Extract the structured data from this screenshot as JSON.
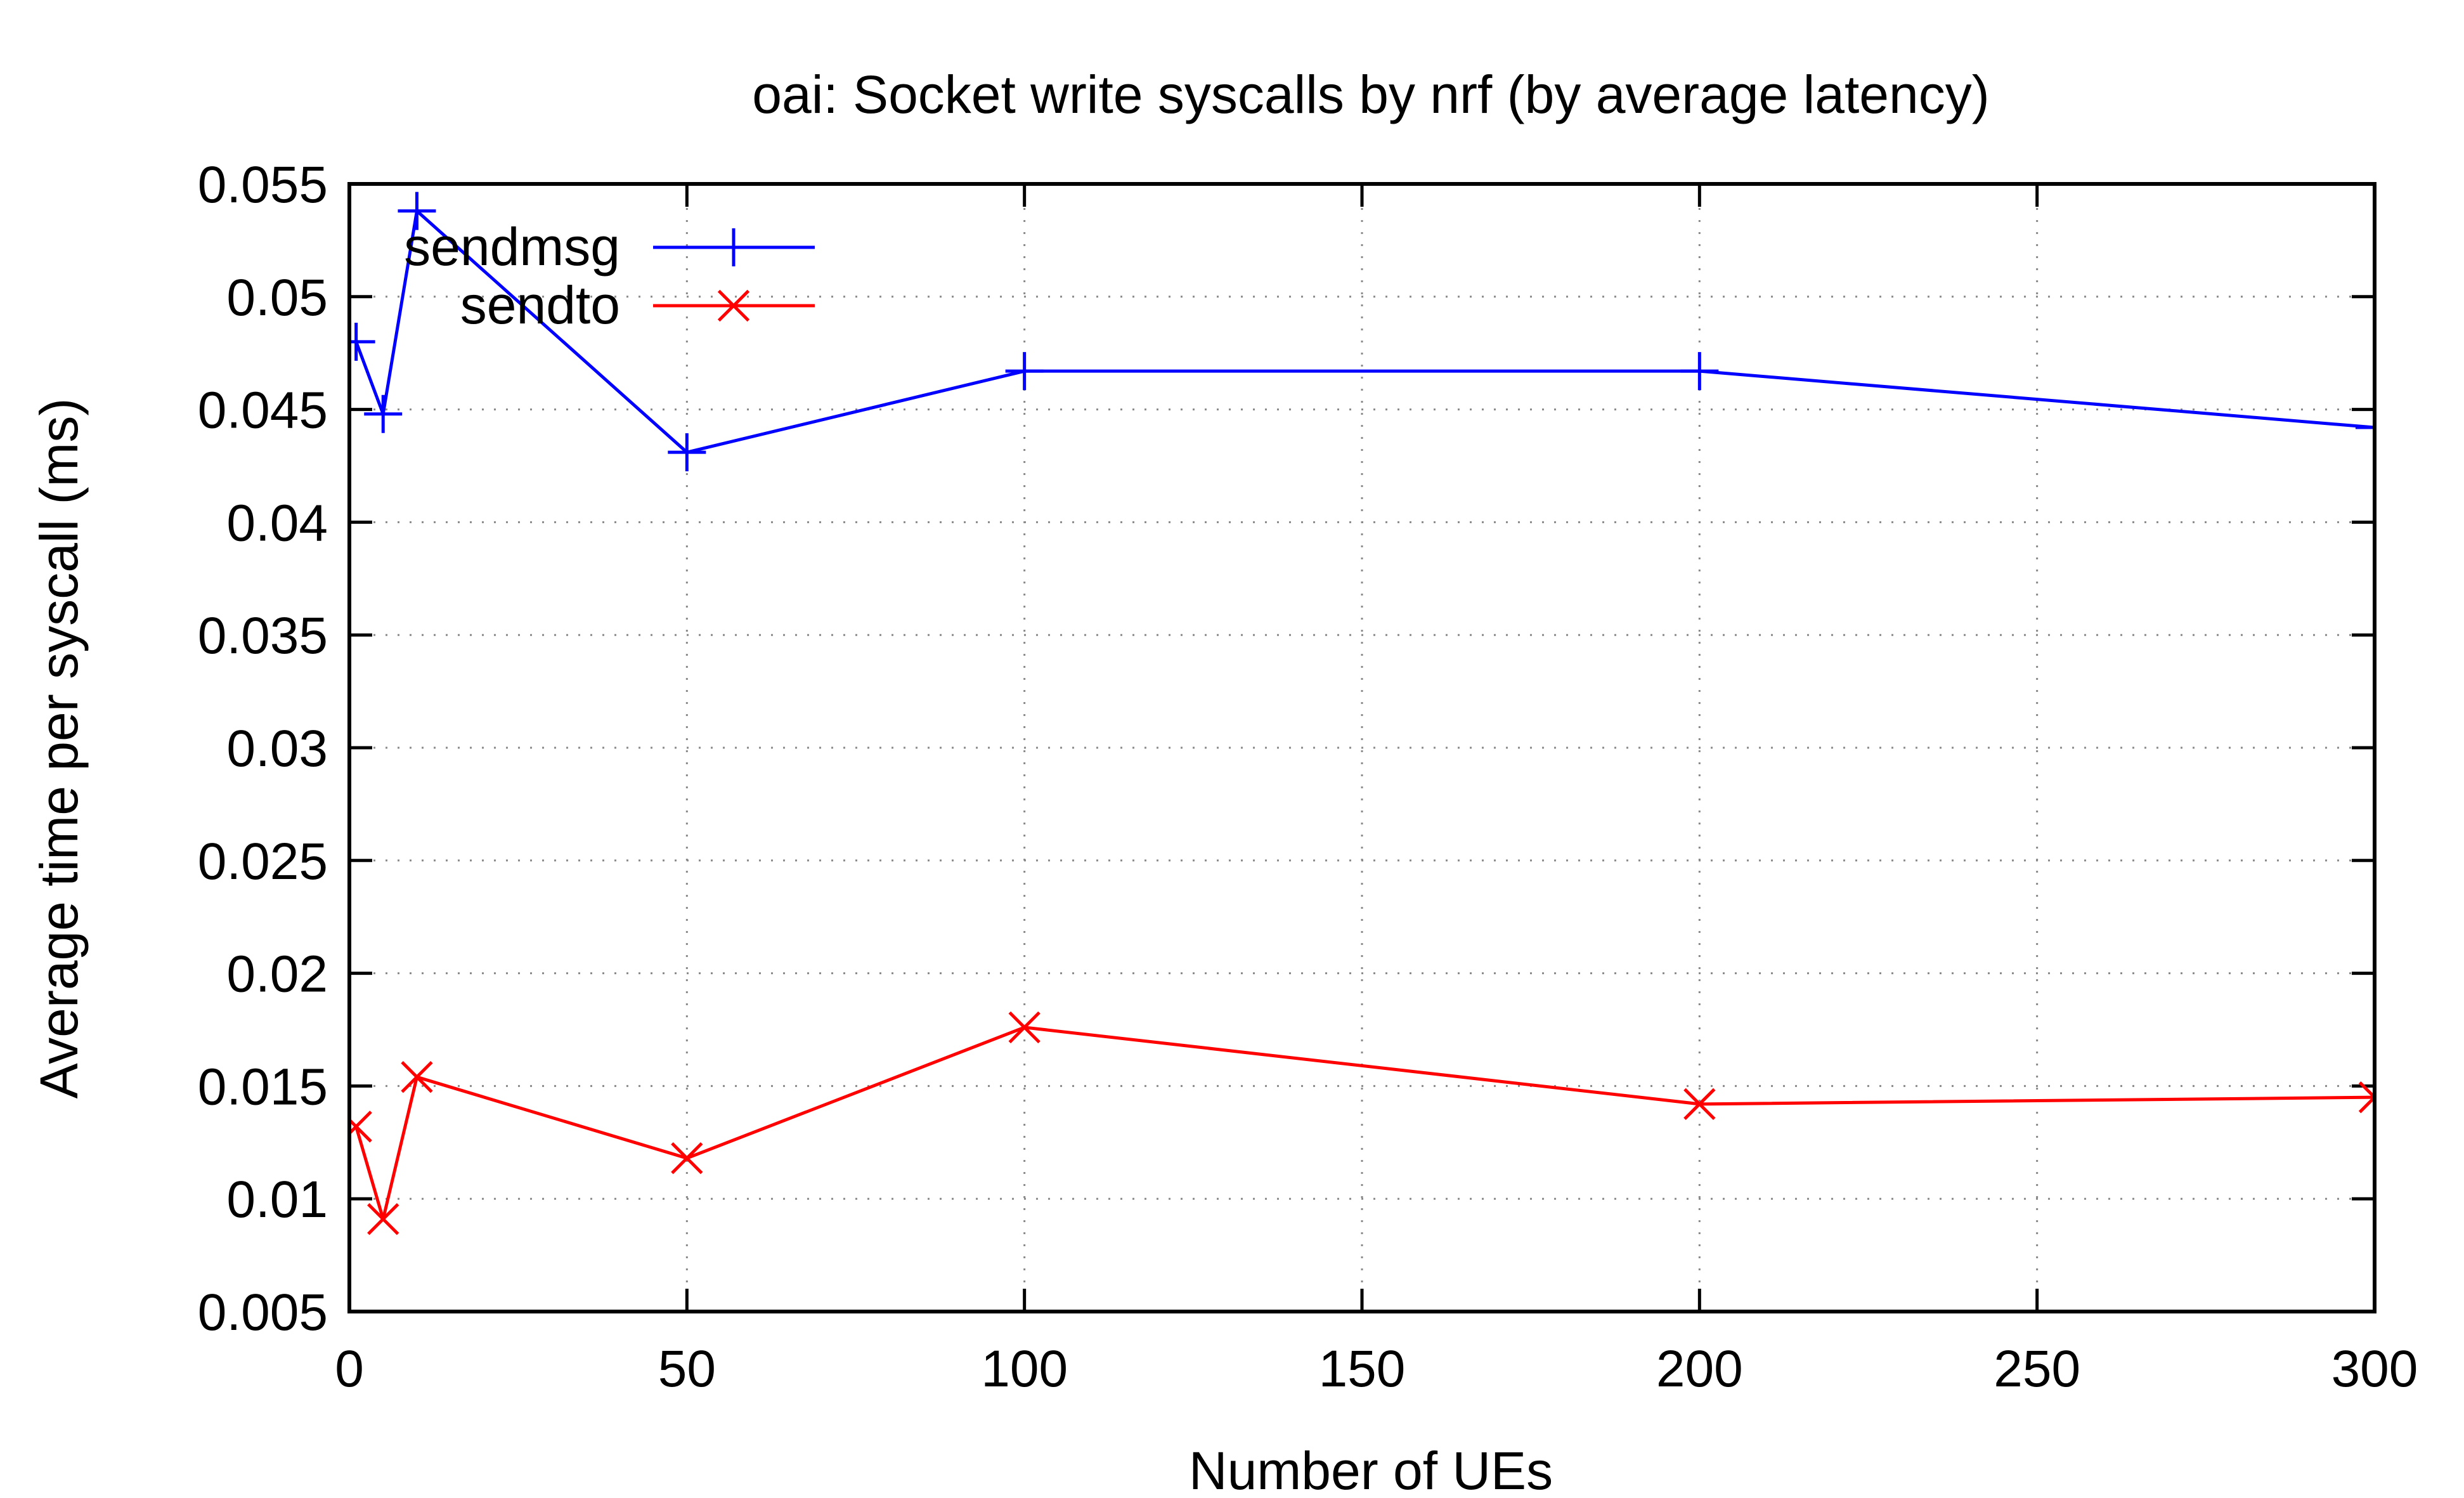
{
  "chart_data": {
    "type": "line",
    "title": "oai: Socket write syscalls by nrf (by average latency)",
    "xlabel": "Number of UEs",
    "ylabel": "Average time per syscall (ms)",
    "xlim": [
      0,
      300
    ],
    "ylim": [
      0.005,
      0.055
    ],
    "xticks": [
      0,
      50,
      100,
      150,
      200,
      250,
      300
    ],
    "xtick_labels": [
      "0",
      "50",
      "100",
      "150",
      "200",
      "250",
      "300"
    ],
    "yticks": [
      0.005,
      0.01,
      0.015,
      0.02,
      0.025,
      0.03,
      0.035,
      0.04,
      0.045,
      0.05,
      0.055
    ],
    "ytick_labels": [
      "0.005",
      "0.01",
      "0.015",
      "0.02",
      "0.025",
      "0.03",
      "0.035",
      "0.04",
      "0.045",
      "0.05",
      "0.055"
    ],
    "grid": true,
    "legend_position": "top-left",
    "series": [
      {
        "name": "sendmsg",
        "color": "#0000ff",
        "marker": "plus",
        "x": [
          1,
          5,
          10,
          50,
          100,
          200,
          300
        ],
        "y": [
          0.048,
          0.0448,
          0.0538,
          0.0431,
          0.0467,
          0.0467,
          0.0442
        ]
      },
      {
        "name": "sendto",
        "color": "#ff0000",
        "marker": "cross",
        "x": [
          1,
          5,
          10,
          50,
          100,
          200,
          300
        ],
        "y": [
          0.0132,
          0.0091,
          0.0154,
          0.0118,
          0.0176,
          0.0142,
          0.0145
        ]
      }
    ]
  }
}
